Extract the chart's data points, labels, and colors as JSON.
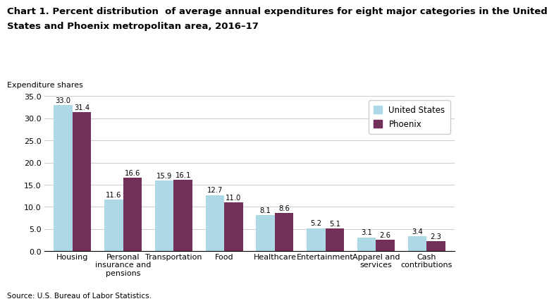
{
  "title_line1": "Chart 1. Percent distribution  of average annual expenditures for eight major categories in the United",
  "title_line2": "States and Phoenix metropolitan area, 2016–17",
  "ylabel_above": "Expenditure shares",
  "source": "Source: U.S. Bureau of Labor Statistics.",
  "categories": [
    "Housing",
    "Personal\ninsurance and\npensions",
    "Transportation",
    "Food",
    "Healthcare",
    "Entertainment",
    "Apparel and\nservices",
    "Cash\ncontributions"
  ],
  "us_values": [
    33.0,
    11.6,
    15.9,
    12.7,
    8.1,
    5.2,
    3.1,
    3.4
  ],
  "phoenix_values": [
    31.4,
    16.6,
    16.1,
    11.0,
    8.6,
    5.1,
    2.6,
    2.3
  ],
  "us_color": "#ADD8E6",
  "phoenix_color": "#722F5A",
  "us_label": "United States",
  "phoenix_label": "Phoenix",
  "ylim": [
    0,
    35.0
  ],
  "yticks": [
    0.0,
    5.0,
    10.0,
    15.0,
    20.0,
    25.0,
    30.0,
    35.0
  ],
  "bar_width": 0.37,
  "title_fontsize": 9.5,
  "axis_label_fontsize": 8.0,
  "tick_fontsize": 8.0,
  "value_fontsize": 7.2,
  "legend_fontsize": 8.5,
  "source_fontsize": 7.5
}
